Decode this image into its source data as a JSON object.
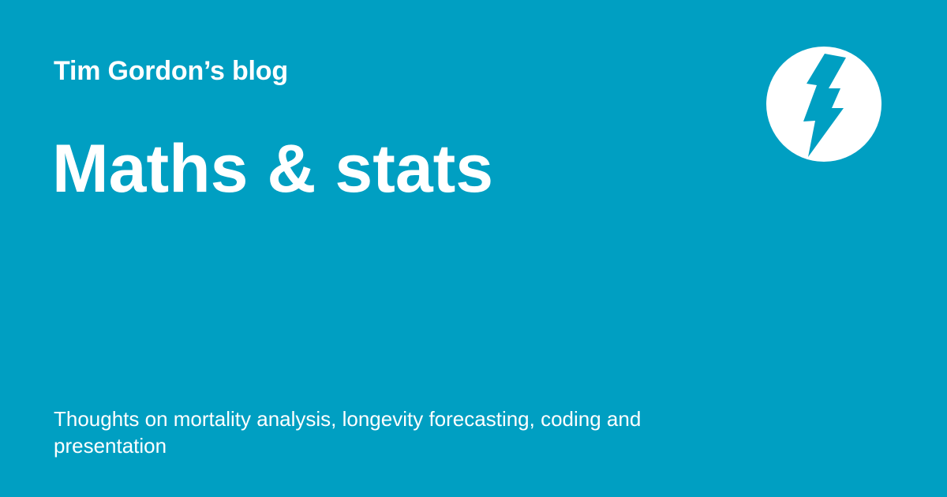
{
  "header": {
    "site_name": "Tim Gordon’s blog"
  },
  "main": {
    "title": "Maths & stats",
    "tagline": "Thoughts on mortality analysis, longevity forecasting, coding and presentation"
  },
  "logo": {
    "icon": "lightning-bolt-icon"
  },
  "colors": {
    "background": "#009fc2",
    "text": "#ffffff",
    "logo_circle": "#ffffff",
    "logo_bolt": "#009fc2"
  }
}
